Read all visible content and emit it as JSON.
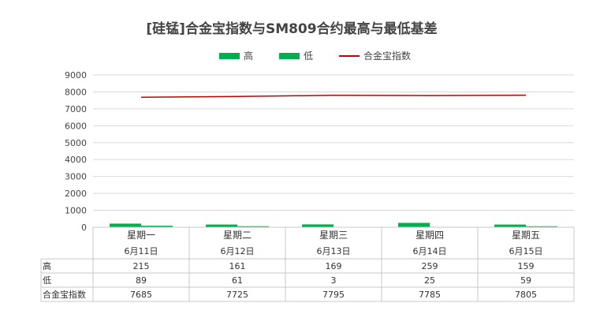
{
  "title": "[硅锰]合金宝指数与SM809合约最高与最低基差",
  "legend": {
    "items": [
      {
        "label": "高",
        "color": "#00b050",
        "kind": "bar"
      },
      {
        "label": "低",
        "color": "#00b050",
        "kind": "bar"
      },
      {
        "label": "合金宝指数",
        "color": "#c00000",
        "kind": "line"
      }
    ]
  },
  "chart_data": {
    "type": "bar",
    "title": "[硅锰]合金宝指数与SM809合约最高与最低基差",
    "categories": [
      "星期一",
      "星期二",
      "星期三",
      "星期四",
      "星期五"
    ],
    "dates": [
      "6月11日",
      "6月12日",
      "6月13日",
      "6月14日",
      "6月15日"
    ],
    "series": [
      {
        "name": "高",
        "type": "bar",
        "color": "#00b050",
        "values": [
          215,
          161,
          169,
          259,
          159
        ]
      },
      {
        "name": "低",
        "type": "bar",
        "color": "#00b050",
        "values": [
          89,
          61,
          3,
          25,
          59
        ]
      },
      {
        "name": "合金宝指数",
        "type": "line",
        "color": "#c00000",
        "values": [
          7685,
          7725,
          7795,
          7785,
          7805
        ]
      }
    ],
    "ylim": [
      0,
      9000
    ],
    "yticks": [
      0,
      1000,
      2000,
      3000,
      4000,
      5000,
      6000,
      7000,
      8000,
      9000
    ],
    "grid": true,
    "legend_position": "top"
  }
}
